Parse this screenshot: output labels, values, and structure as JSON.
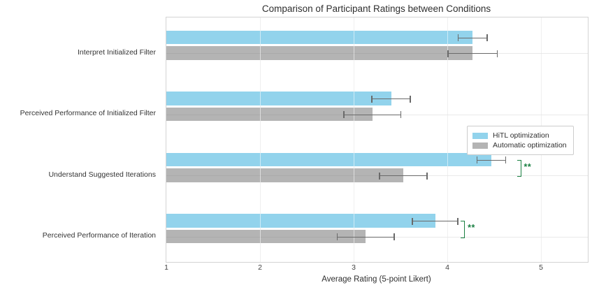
{
  "title": "Comparison of Participant Ratings between Conditions",
  "x_axis_label": "Average Rating (5-point Likert)",
  "legend": {
    "items": [
      {
        "label": "HiTL optimization",
        "color": "#92d3ec"
      },
      {
        "label": "Automatic optimization",
        "color": "#b4b4b4"
      }
    ]
  },
  "colors": {
    "hitl_bar": "#92d3ec",
    "automatic_bar": "#b4b4b4",
    "error_bar": "#6a6a6a",
    "significance_green": "#1a8042",
    "gridline": "#dcdcdc"
  },
  "chart_data": {
    "type": "bar",
    "orientation": "horizontal",
    "title": "Comparison of Participant Ratings between Conditions",
    "xlabel": "Average Rating (5-point Likert)",
    "ylabel": "",
    "categories": [
      "Interpret Initialized Filter",
      "Perceived Performance of Initialized Filter",
      "Understand Suggested Iterations",
      "Perceived Performance of Iteration"
    ],
    "series": [
      {
        "name": "HiTL optimization",
        "color": "#92d3ec",
        "values": [
          4.27,
          3.4,
          4.47,
          3.87
        ],
        "errors": [
          0.16,
          0.21,
          0.16,
          0.25
        ]
      },
      {
        "name": "Automatic optimization",
        "color": "#b4b4b4",
        "values": [
          4.27,
          3.2,
          3.53,
          3.13
        ],
        "errors": [
          0.27,
          0.31,
          0.26,
          0.31
        ]
      }
    ],
    "significance": [
      {
        "category_index": 2,
        "marker": "**",
        "bracket_x": 4.78
      },
      {
        "category_index": 3,
        "marker": "**",
        "bracket_x": 4.18
      }
    ],
    "xticks": [
      1,
      2,
      3,
      4,
      5
    ],
    "xlim": [
      1,
      5.5
    ],
    "grid": true,
    "legend_position": "right-middle"
  }
}
